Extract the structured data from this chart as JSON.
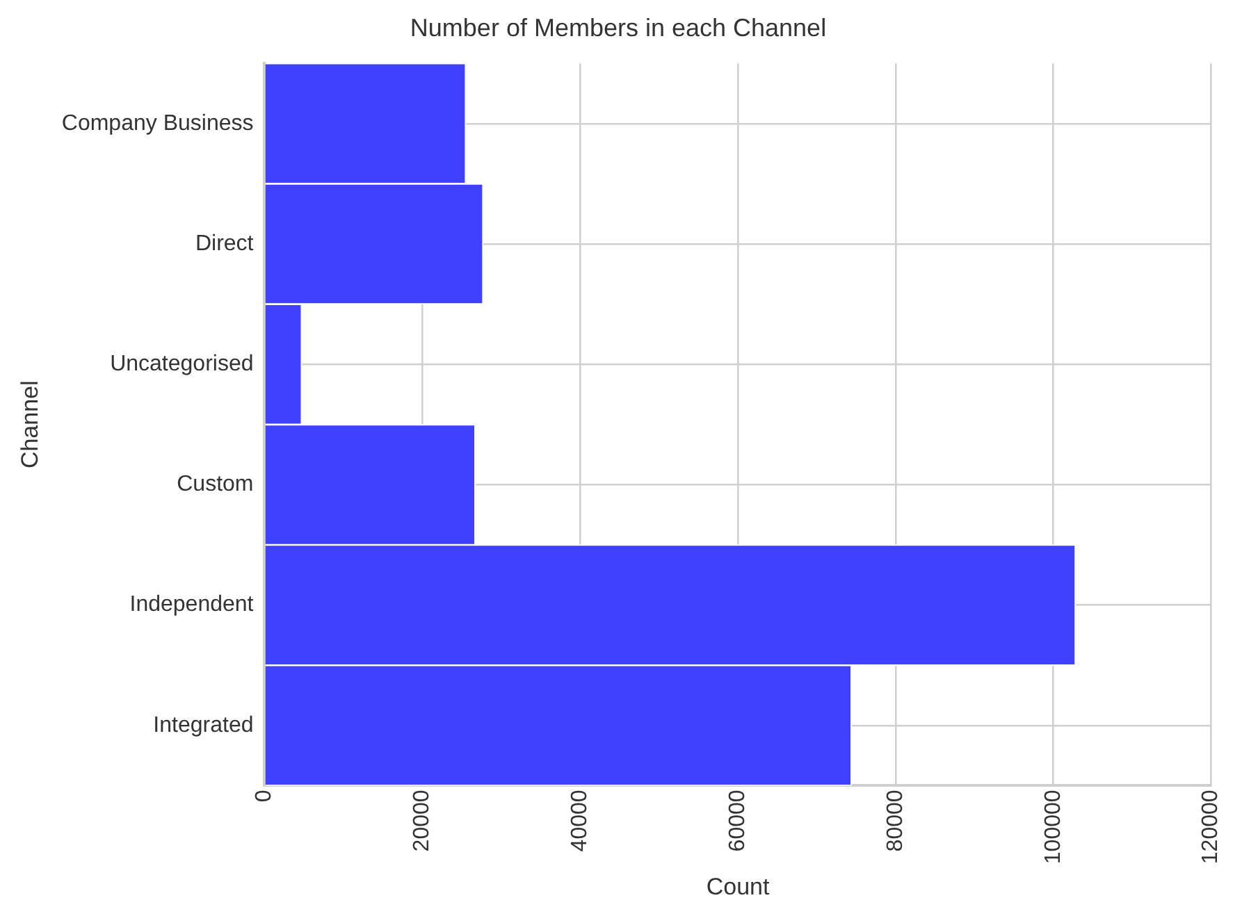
{
  "chart_data": {
    "type": "bar",
    "orientation": "horizontal",
    "title": "Number of Members in each Channel",
    "xlabel": "Count",
    "ylabel": "Channel",
    "categories": [
      "Company Business",
      "Direct",
      "Uncategorised",
      "Custom",
      "Independent",
      "Integrated"
    ],
    "values": [
      25500,
      27700,
      4700,
      26700,
      102800,
      74400
    ],
    "color": "#4040ff",
    "xlim": [
      0,
      120000
    ],
    "xticks": [
      0,
      20000,
      40000,
      60000,
      80000,
      100000,
      120000
    ],
    "grid": true
  }
}
